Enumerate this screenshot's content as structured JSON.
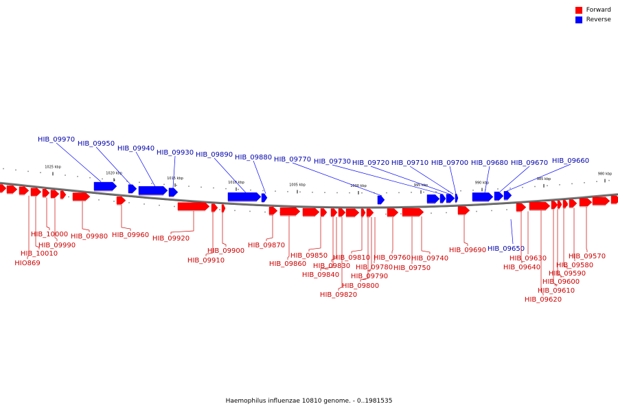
{
  "legend": {
    "forward": {
      "label": "Forward",
      "color": "#ff0000"
    },
    "reverse": {
      "label": "Reverse",
      "color": "#0000ff"
    }
  },
  "caption": "Haemophilus influenzae 10810 genome. - 0..1981535",
  "scale_labels": [
    "1025 kbp",
    "1020 kbp",
    "1015 kbp",
    "1010 kbp",
    "1005 kbp",
    "1000 kbp",
    "995 kbp",
    "990 kbp",
    "985 kbp",
    "980 kbp"
  ],
  "reverse_genes": [
    "HIB_09970",
    "HIB_09950",
    "HIB_09940",
    "HIB_09930",
    "HIB_09890",
    "HIB_09880",
    "HIB_09770",
    "HIB_09730",
    "HIB_09720",
    "HIB_09710",
    "HIB_09700",
    "HIB_09680",
    "HIB_09670",
    "HIB_09660",
    "HIB_09650"
  ],
  "forward_genes": [
    "HIO869",
    "HIB_10010",
    "HIB_10000",
    "HIB_09990",
    "HIB_09980",
    "HIB_09960",
    "HIB_09920",
    "HIB_09910",
    "HIB_09900",
    "HIB_09870",
    "HIB_09860",
    "HIB_09850",
    "HIB_09840",
    "HIB_09830",
    "HIB_09820",
    "HIB_09810",
    "HIB_09800",
    "HIB_09790",
    "HIB_09780",
    "HIB_09760",
    "HIB_09750",
    "HIB_09740",
    "HIB_09690",
    "HIB_09640",
    "HIB_09630",
    "HIB_09620",
    "HIB_09610",
    "HIB_09600",
    "HIB_09590",
    "HIB_09580",
    "HIB_09570"
  ]
}
